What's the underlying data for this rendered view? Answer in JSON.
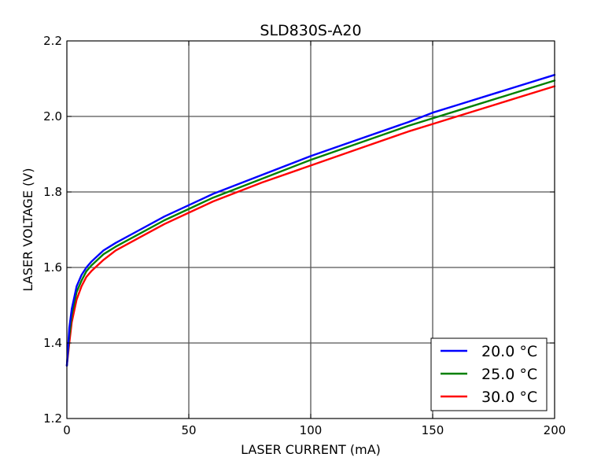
{
  "chart_data": {
    "type": "line",
    "title": "SLD830S-A20",
    "xlabel": "LASER CURRENT (mA)",
    "ylabel": "LASER VOLTAGE (V)",
    "xlim": [
      0,
      200
    ],
    "ylim": [
      1.2,
      2.2
    ],
    "xticks": [
      0,
      50,
      100,
      150,
      200
    ],
    "yticks": [
      1.2,
      1.4,
      1.6,
      1.8,
      2.0,
      2.2
    ],
    "xtick_labels": [
      "0",
      "50",
      "100",
      "150",
      "200"
    ],
    "ytick_labels": [
      "1.2",
      "1.4",
      "1.6",
      "1.8",
      "2.0",
      "2.2"
    ],
    "grid": true,
    "legend_position": "bottom-right",
    "x": [
      0,
      1,
      2,
      4,
      6,
      8,
      10,
      15,
      20,
      30,
      40,
      50,
      60,
      80,
      100,
      120,
      140,
      150,
      160,
      180,
      200
    ],
    "series": [
      {
        "name": "20.0 °C",
        "color": "#0000ff",
        "values": [
          1.34,
          1.44,
          1.49,
          1.55,
          1.58,
          1.6,
          1.615,
          1.645,
          1.665,
          1.7,
          1.735,
          1.765,
          1.795,
          1.845,
          1.895,
          1.94,
          1.985,
          2.01,
          2.03,
          2.07,
          2.11
        ]
      },
      {
        "name": "25.0 °C",
        "color": "#008000",
        "values": [
          1.34,
          1.42,
          1.475,
          1.535,
          1.565,
          1.59,
          1.605,
          1.635,
          1.655,
          1.69,
          1.725,
          1.755,
          1.785,
          1.835,
          1.885,
          1.93,
          1.975,
          1.995,
          2.015,
          2.055,
          2.095
        ]
      },
      {
        "name": "30.0 °C",
        "color": "#ff0000",
        "values": [
          1.34,
          1.4,
          1.455,
          1.515,
          1.55,
          1.575,
          1.59,
          1.62,
          1.645,
          1.68,
          1.715,
          1.745,
          1.775,
          1.825,
          1.87,
          1.915,
          1.96,
          1.98,
          2.0,
          2.04,
          2.08
        ]
      }
    ]
  }
}
